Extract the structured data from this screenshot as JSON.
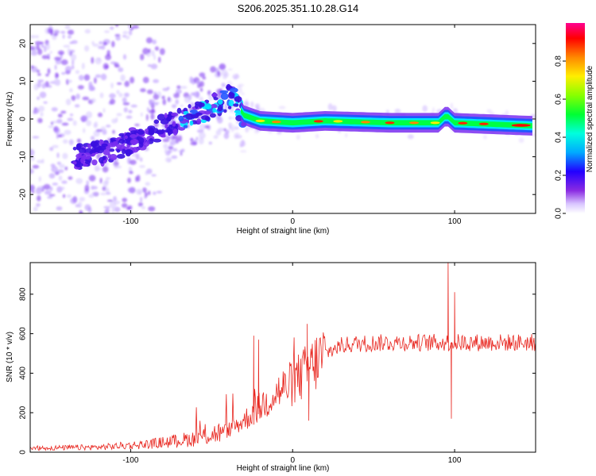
{
  "title": "S206.2025.351.10.28.G14",
  "chart_data": [
    {
      "type": "heatmap",
      "xlabel": "Height of straight line (km)",
      "ylabel": "Frequency (Hz)",
      "xlim": [
        -162,
        150
      ],
      "ylim": [
        -25,
        25
      ],
      "xticks": [
        -100,
        0,
        100
      ],
      "xtick_labels": [
        "-100",
        "0",
        "100"
      ],
      "yticks": [
        -20,
        -10,
        0,
        10,
        20
      ],
      "ytick_labels": [
        "-20",
        "-10",
        "0",
        "10",
        "20"
      ],
      "colorbar": {
        "label": "Normalized spectral amplitude",
        "range": [
          0,
          1
        ],
        "ticks": [
          0.0,
          0.2,
          0.4,
          0.6,
          0.8
        ],
        "tick_labels": [
          "0.0",
          "0.2",
          "0.4",
          "0.6",
          "0.8"
        ]
      },
      "ridge": {
        "description_points": [
          [
            -130,
            -10
          ],
          [
            -110,
            -8
          ],
          [
            -90,
            -4
          ],
          [
            -70,
            0
          ],
          [
            -50,
            3
          ],
          [
            -38,
            6
          ],
          [
            -30,
            1
          ],
          [
            -20,
            -0.5
          ],
          [
            0,
            -1
          ],
          [
            20,
            -0.5
          ],
          [
            60,
            -1
          ],
          [
            90,
            -1
          ],
          [
            95,
            1
          ],
          [
            100,
            -1
          ],
          [
            130,
            -1.5
          ],
          [
            148,
            -1.8
          ]
        ],
        "peak_amplitude_region_km": [
          20,
          145
        ]
      }
    },
    {
      "type": "line",
      "xlabel": "Height of straight line (km)",
      "ylabel": "SNR (10 * v/v)",
      "xlim": [
        -162,
        150
      ],
      "ylim": [
        0,
        960
      ],
      "xticks": [
        -100,
        0,
        100
      ],
      "xtick_labels": [
        "-100",
        "0",
        "100"
      ],
      "yticks": [
        0,
        200,
        400,
        600,
        800
      ],
      "ytick_labels": [
        "0",
        "200",
        "400",
        "600",
        "800"
      ],
      "series": [
        {
          "name": "SNR",
          "color": "#e8261f",
          "envelope": {
            "x": [
              -162,
              -120,
              -90,
              -60,
              -40,
              -30,
              -20,
              -10,
              0,
              10,
              20,
              30,
              40,
              60,
              80,
              100,
              120,
              150
            ],
            "y": [
              20,
              25,
              40,
              70,
              110,
              160,
              230,
              300,
              350,
              420,
              500,
              540,
              550,
              555,
              555,
              555,
              555,
              555
            ]
          },
          "spikes": [
            {
              "x": -24,
              "y": 590
            },
            {
              "x": -21,
              "y": 570
            },
            {
              "x": 9,
              "y": 650
            },
            {
              "x": 10,
              "y": 160
            },
            {
              "x": 96,
              "y": 960
            },
            {
              "x": 98,
              "y": 170
            },
            {
              "x": 100,
              "y": 810
            }
          ]
        }
      ]
    }
  ]
}
